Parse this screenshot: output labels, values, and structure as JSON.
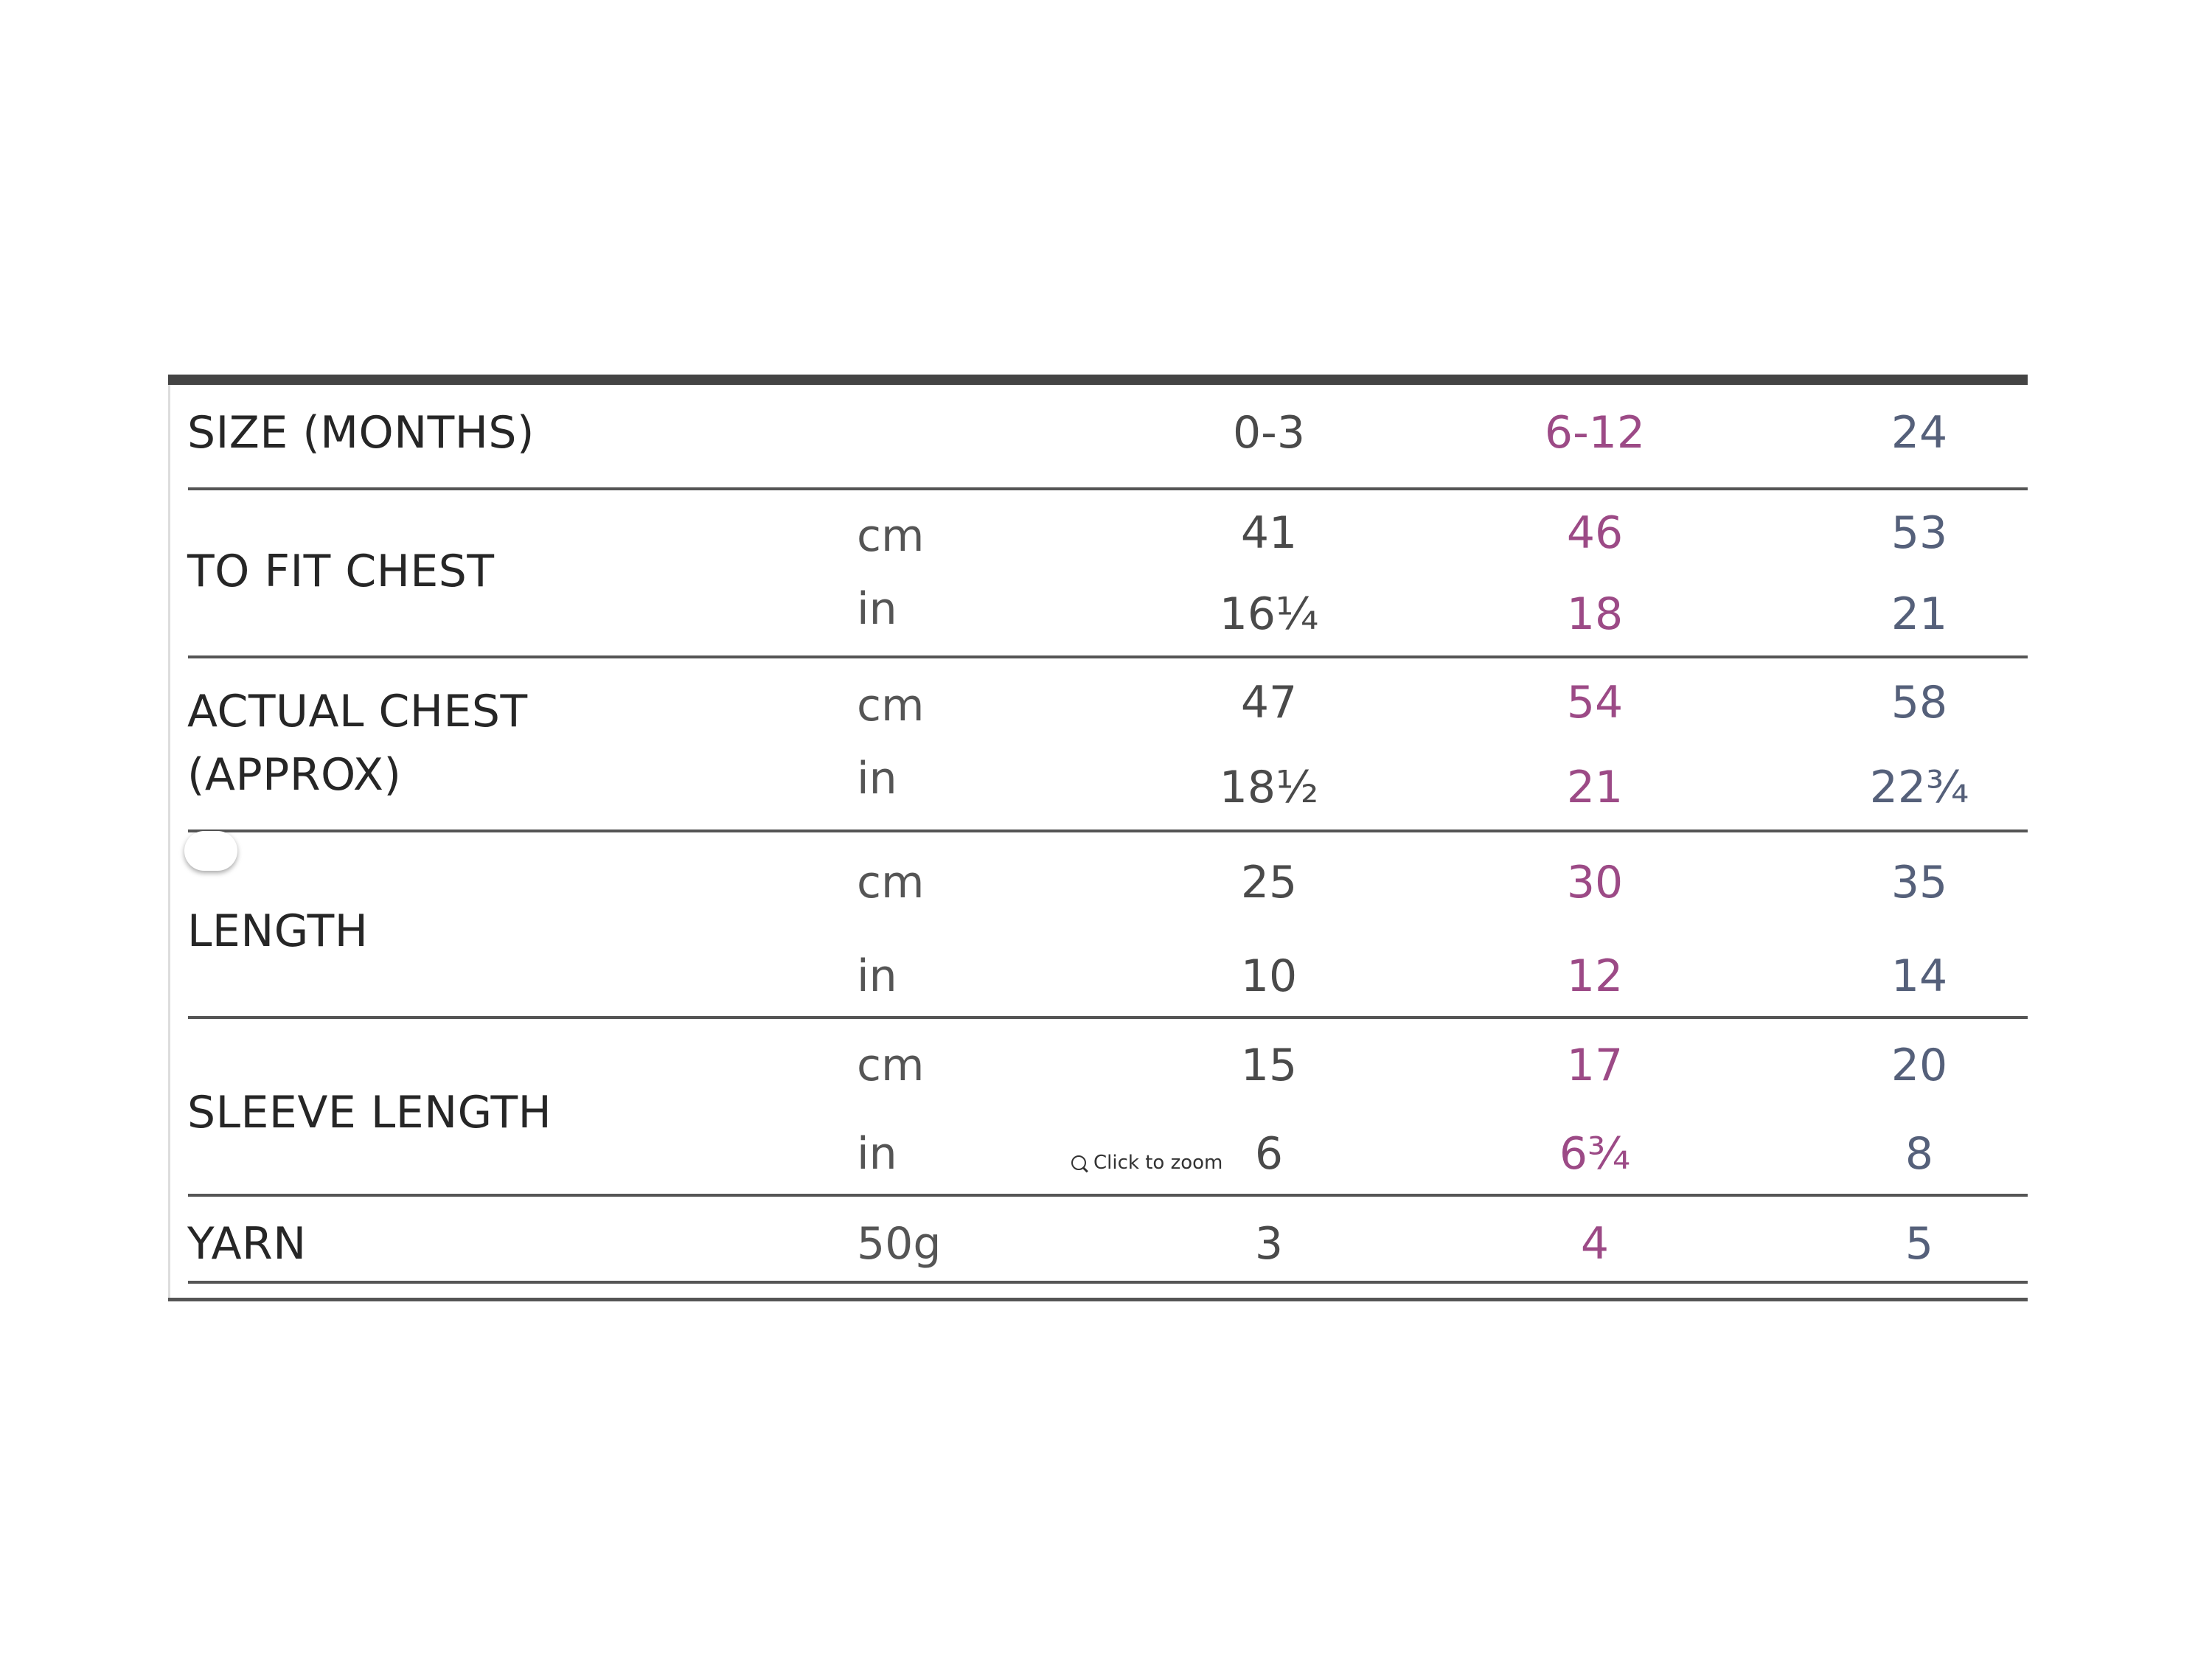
{
  "table": {
    "header": {
      "label": "SIZE (MONTHS)",
      "sizes": [
        "0-3",
        "6-12",
        "24"
      ]
    },
    "rows": [
      {
        "label": "TO FIT CHEST",
        "cm": {
          "unit": "cm",
          "values": [
            "41",
            "46",
            "53"
          ]
        },
        "in": {
          "unit": "in",
          "values": [
            "16¼",
            "18",
            "21"
          ]
        }
      },
      {
        "label_line1": "ACTUAL CHEST",
        "label_line2": "(APPROX)",
        "cm": {
          "unit": "cm",
          "values": [
            "47",
            "54",
            "58"
          ]
        },
        "in": {
          "unit": "in",
          "values": [
            "18½",
            "21",
            "22¾"
          ]
        }
      },
      {
        "label": "LENGTH",
        "cm": {
          "unit": "cm",
          "values": [
            "25",
            "30",
            "35"
          ]
        },
        "in": {
          "unit": "in",
          "values": [
            "10",
            "12",
            "14"
          ]
        }
      },
      {
        "label": "SLEEVE LENGTH",
        "cm": {
          "unit": "cm",
          "values": [
            "15",
            "17",
            "20"
          ]
        },
        "in": {
          "unit": "in",
          "values": [
            "6",
            "6¾",
            "8"
          ]
        }
      }
    ],
    "yarn": {
      "label": "YARN",
      "unit": "50g",
      "values": [
        "3",
        "4",
        "5"
      ]
    }
  },
  "zoom_hint": {
    "label": "Click to zoom",
    "icon": "zoom-in-icon"
  },
  "colors": {
    "col_0_3": "#4a4a4a",
    "col_6_12": "#9c4a86",
    "col_24": "#55607a"
  }
}
